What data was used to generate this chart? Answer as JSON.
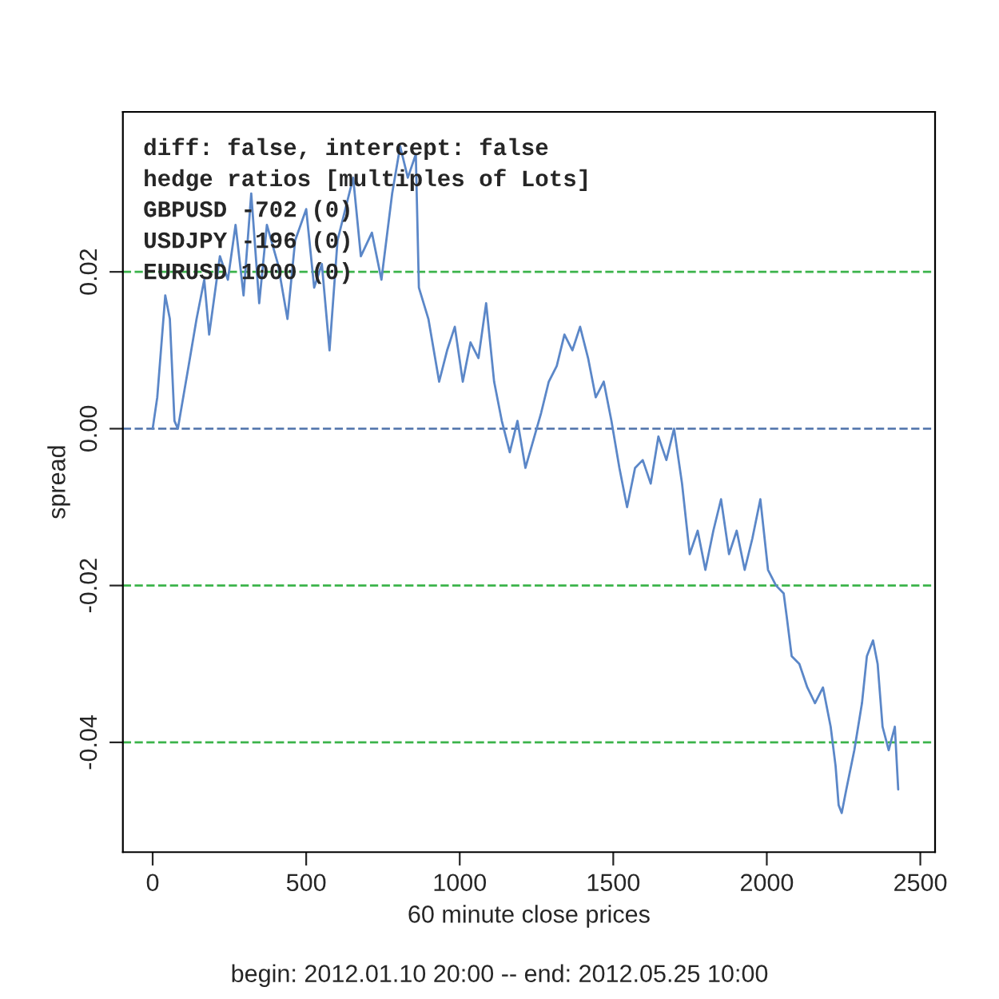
{
  "chart_data": {
    "type": "line",
    "xlabel": "60 minute close prices",
    "ylabel": "spread",
    "annotations": [
      "diff: false, intercept: false",
      "hedge ratios [multiples of Lots]",
      "GBPUSD -702 (0)",
      "USDJPY -196 (0)",
      "EURUSD 1000 (0)",
      "begin: 2012.01.10 20:00 -- end: 2012.05.25 10:00"
    ],
    "series": [
      {
        "color": "#5b87c8",
        "x": [
          0,
          15,
          41,
          56,
          71,
          82,
          117,
          143,
          168,
          184,
          219,
          245,
          270,
          296,
          321,
          347,
          372,
          408,
          439,
          464,
          500,
          526,
          551,
          576,
          602,
          653,
          678,
          714,
          745,
          780,
          806,
          831,
          857,
          867,
          898,
          933,
          959,
          984,
          1010,
          1035,
          1061,
          1086,
          1112,
          1137,
          1163,
          1188,
          1214,
          1265,
          1290,
          1316,
          1341,
          1367,
          1392,
          1418,
          1443,
          1469,
          1494,
          1520,
          1545,
          1571,
          1596,
          1622,
          1647,
          1673,
          1698,
          1724,
          1749,
          1775,
          1800,
          1826,
          1851,
          1877,
          1902,
          1928,
          1953,
          1979,
          2004,
          2030,
          2055,
          2065,
          2081,
          2106,
          2132,
          2157,
          2183,
          2208,
          2224,
          2234,
          2244,
          2259,
          2285,
          2310,
          2326,
          2346,
          2361,
          2377,
          2397,
          2417,
          2428
        ],
        "values": [
          0.0,
          0.004,
          0.017,
          0.014,
          0.001,
          0.0,
          0.008,
          0.014,
          0.019,
          0.012,
          0.022,
          0.019,
          0.026,
          0.017,
          0.03,
          0.016,
          0.026,
          0.021,
          0.014,
          0.024,
          0.028,
          0.018,
          0.021,
          0.01,
          0.024,
          0.032,
          0.022,
          0.025,
          0.019,
          0.03,
          0.036,
          0.032,
          0.035,
          0.018,
          0.014,
          0.006,
          0.01,
          0.013,
          0.006,
          0.011,
          0.009,
          0.016,
          0.006,
          0.001,
          -0.003,
          0.001,
          -0.005,
          0.002,
          0.006,
          0.008,
          0.012,
          0.01,
          0.013,
          0.009,
          0.004,
          0.006,
          0.001,
          -0.005,
          -0.01,
          -0.005,
          -0.004,
          -0.007,
          -0.001,
          -0.004,
          0.0,
          -0.007,
          -0.016,
          -0.013,
          -0.018,
          -0.013,
          -0.009,
          -0.016,
          -0.013,
          -0.018,
          -0.014,
          -0.009,
          -0.018,
          -0.02,
          -0.021,
          -0.024,
          -0.029,
          -0.03,
          -0.033,
          -0.035,
          -0.033,
          -0.038,
          -0.043,
          -0.048,
          -0.049,
          -0.046,
          -0.041,
          -0.035,
          -0.029,
          -0.027,
          -0.03,
          -0.038,
          -0.041,
          -0.038,
          -0.046
        ]
      }
    ],
    "xlim": [
      -97,
      2548
    ],
    "ylim": [
      -0.054,
      0.0404
    ],
    "xticks": [
      0,
      500,
      1000,
      1500,
      2000,
      2500
    ],
    "yticks": [
      -0.04,
      -0.02,
      {
        "value": 0,
        "label": "0.00"
      },
      0.02
    ],
    "ref_lines": [
      {
        "axis": "y",
        "value": 0.02,
        "color": "#3cb44b",
        "line_style": "dashed"
      },
      {
        "axis": "y",
        "value": 0,
        "color": "#5a7bb0",
        "line_style": "dashed"
      },
      {
        "axis": "y",
        "value": -0.02,
        "color": "#3cb44b",
        "line_style": "dashed"
      },
      {
        "axis": "y",
        "value": -0.04,
        "color": "#3cb44b",
        "line_style": "dashed"
      }
    ],
    "grid": false,
    "legend": false,
    "line_style": "solid",
    "marker": "none"
  }
}
